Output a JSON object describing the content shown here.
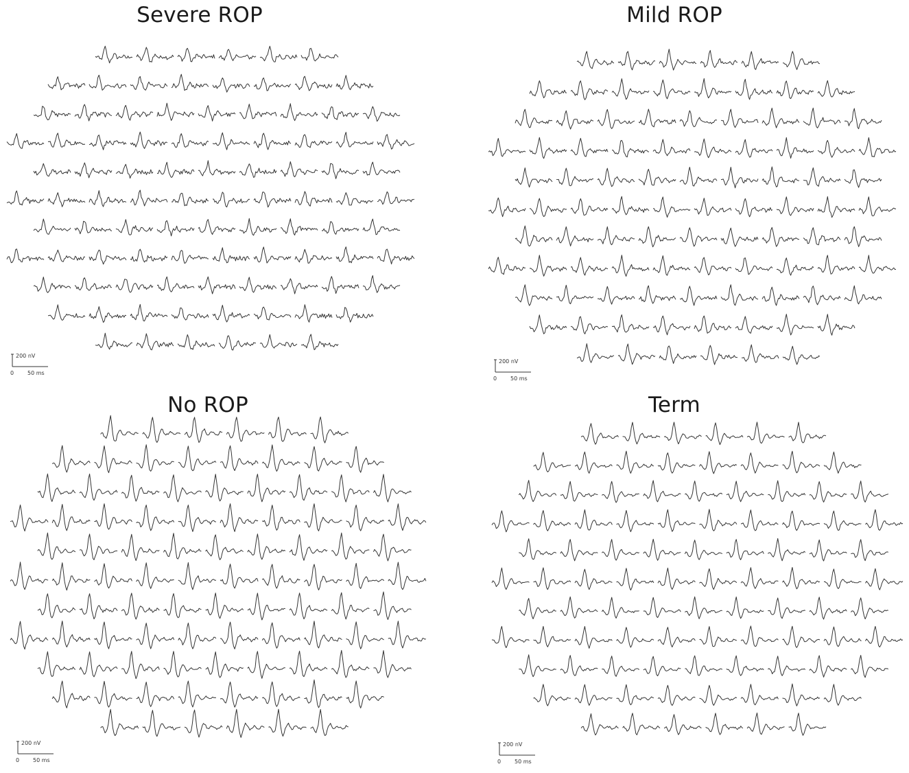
{
  "figure": {
    "trace_color": "#333333",
    "panels": [
      {
        "id": "severe",
        "title": "Severe ROP",
        "row_counts": [
          6,
          8,
          9,
          10,
          9,
          10,
          9,
          10,
          9,
          8,
          6
        ],
        "amplitude": 0.55,
        "variant": "noisy"
      },
      {
        "id": "mild",
        "title": "Mild ROP",
        "row_counts": [
          6,
          8,
          9,
          10,
          9,
          10,
          9,
          10,
          9,
          8,
          6
        ],
        "amplitude": 0.7,
        "variant": "mixed"
      },
      {
        "id": "none",
        "title": "No ROP",
        "row_counts": [
          6,
          8,
          9,
          10,
          9,
          10,
          9,
          10,
          9,
          8,
          6
        ],
        "amplitude": 1.0,
        "variant": "clean"
      },
      {
        "id": "term",
        "title": "Term",
        "row_counts": [
          6,
          8,
          9,
          10,
          9,
          10,
          9,
          10,
          9,
          8,
          6
        ],
        "amplitude": 0.8,
        "variant": "clean"
      }
    ],
    "scale_bar": {
      "voltage_label": "200 nV",
      "zero_label": "0",
      "time_label": "50 ms"
    }
  }
}
